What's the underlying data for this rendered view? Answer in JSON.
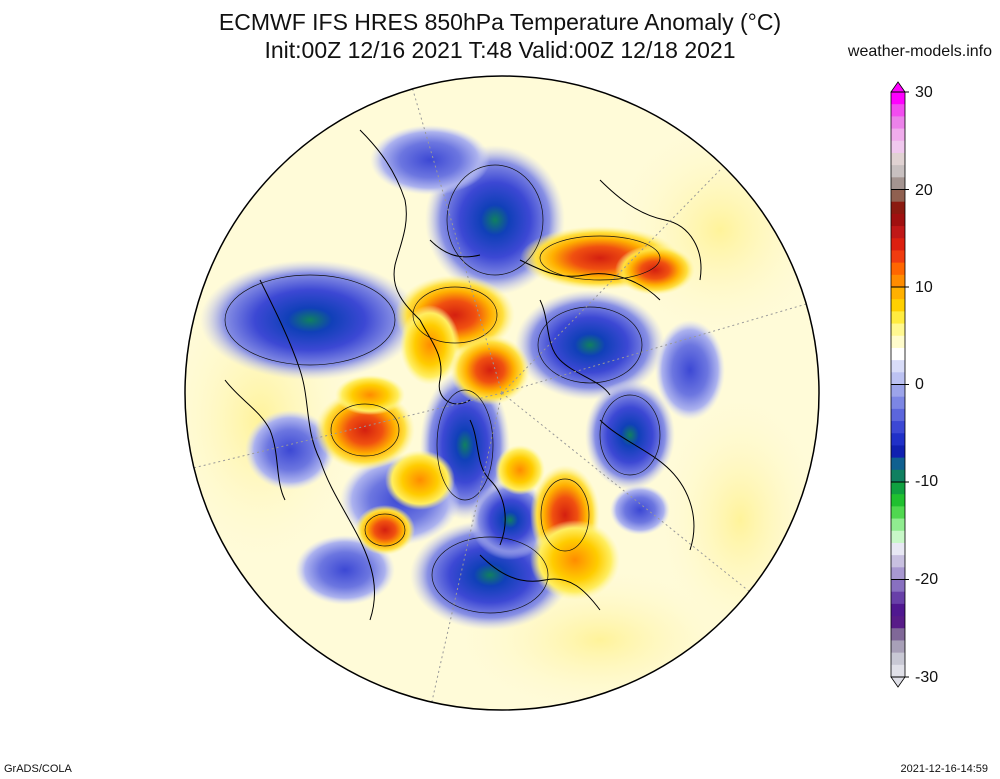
{
  "header": {
    "title_line1": "ECMWF IFS HRES 850hPa Temperature Anomaly (°C)",
    "title_line2": "Init:00Z 12/16 2021 T:48 Valid:00Z 12/18 2021",
    "brand": "weather-models.info"
  },
  "map": {
    "projection": "north-polar-stereographic",
    "variable": "850hPa temperature anomaly",
    "units": "°C",
    "notable_features": [
      {
        "id": "warm-west-scandinavia",
        "sign": "warm",
        "level_c": 12
      },
      {
        "id": "warm-central-russia",
        "sign": "warm",
        "level_c": 10
      },
      {
        "id": "warm-east-asia",
        "sign": "warm",
        "level_c": 10
      },
      {
        "id": "warm-west-canada",
        "sign": "warm",
        "level_c": 12
      },
      {
        "id": "warm-central-us",
        "sign": "warm",
        "level_c": 12
      },
      {
        "id": "cold-west-siberia",
        "sign": "cold",
        "level_c": -10
      },
      {
        "id": "cold-greenland",
        "sign": "cold",
        "level_c": -10
      },
      {
        "id": "cold-alaska",
        "sign": "cold",
        "level_c": -12
      },
      {
        "id": "cold-central-siberia",
        "sign": "cold",
        "level_c": -12
      },
      {
        "id": "cold-hudson-bay",
        "sign": "cold",
        "level_c": -8
      },
      {
        "id": "cold-north-pacific",
        "sign": "cold",
        "level_c": -8
      }
    ]
  },
  "colorbar": {
    "labels": [
      "30",
      "20",
      "10",
      "0",
      "-10",
      "-20",
      "-30"
    ],
    "min": -30,
    "max": 30,
    "colors_top_to_bottom": [
      "#ff00ff",
      "#f24cf0",
      "#ec82ea",
      "#f0acec",
      "#f0c8ee",
      "#e0d2d2",
      "#c8c0c0",
      "#a49490",
      "#906050",
      "#8b1a10",
      "#a01010",
      "#c01818",
      "#dc2010",
      "#f03c10",
      "#ff6600",
      "#ff8c00",
      "#ffb000",
      "#ffd000",
      "#ffec40",
      "#fff890",
      "#fffccc",
      "#ffffff",
      "#d8dcf8",
      "#bcc2f2",
      "#9ca4ea",
      "#7c86e4",
      "#5c66dc",
      "#3c48d4",
      "#2030c8",
      "#1020b0",
      "#106090",
      "#108060",
      "#10a040",
      "#20c030",
      "#50d850",
      "#90ec90",
      "#c8f8c8",
      "#e8e8f4",
      "#c8c0e0",
      "#a898d0",
      "#8870c0",
      "#6840a8",
      "#501890",
      "#581c88",
      "#806898",
      "#a8a0b8",
      "#c8c8d4",
      "#e0e0e8"
    ]
  },
  "footer": {
    "left": "GrADS/COLA",
    "right": "2021-12-16-14:59"
  }
}
